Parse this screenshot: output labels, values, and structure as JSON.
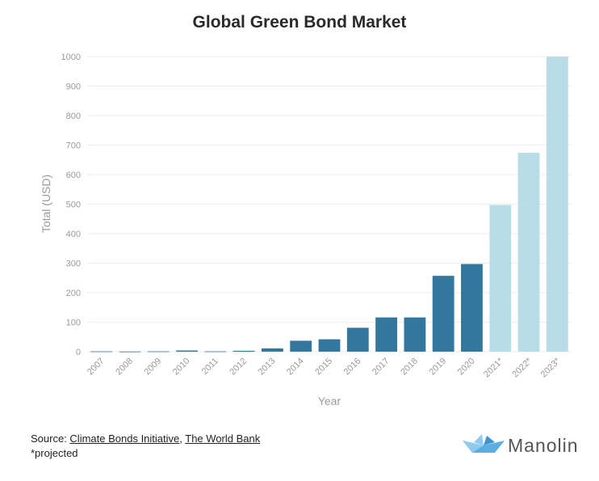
{
  "chart_data": {
    "type": "bar",
    "title": "Global Green Bond Market",
    "xlabel": "Year",
    "ylabel": "Total (USD)",
    "ylim": [
      0,
      1000
    ],
    "yticks": [
      0,
      100,
      200,
      300,
      400,
      500,
      600,
      700,
      800,
      900,
      1000
    ],
    "grid": true,
    "categories": [
      "2007",
      "2008",
      "2009",
      "2010",
      "2011",
      "2012",
      "2013",
      "2014",
      "2015",
      "2016",
      "2017",
      "2018",
      "2019",
      "2020",
      "2021*",
      "2022*",
      "2023*"
    ],
    "values": [
      1,
      0.5,
      1,
      4,
      1,
      3,
      11,
      37,
      42,
      81,
      116,
      116,
      257,
      297,
      497,
      674,
      1000
    ],
    "projected": [
      false,
      false,
      false,
      false,
      false,
      false,
      false,
      false,
      false,
      false,
      false,
      false,
      false,
      false,
      true,
      true,
      true
    ],
    "colors": {
      "actual": "#33779f",
      "projected": "#b8dde7",
      "grid": "#ececec",
      "axis_text": "#9a9a9a",
      "label_text": "#9a9a9a"
    }
  },
  "footer": {
    "source_prefix": "Source: ",
    "source_link_1": "Climate Bonds Initiative",
    "separator": ", ",
    "source_link_2": "The World Bank",
    "note": "*projected"
  },
  "brand": {
    "name": "Manolin",
    "icon": "paper-boat-icon",
    "icon_colors": [
      "#5aaee0",
      "#8fcbef",
      "#3f93cf"
    ]
  }
}
